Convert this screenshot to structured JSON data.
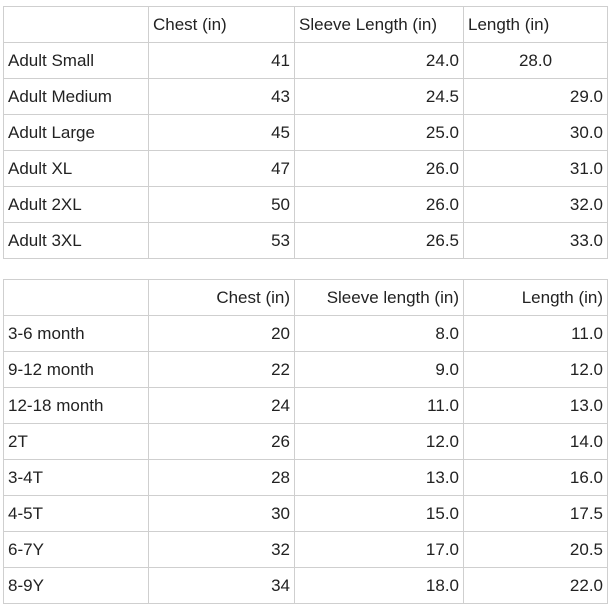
{
  "adult_table": {
    "headers": [
      "",
      "Chest (in)",
      "Sleeve Length (in)",
      "Length (in)"
    ],
    "rows": [
      [
        "Adult Small",
        "41",
        "24.0",
        "28.0"
      ],
      [
        "Adult Medium",
        "43",
        "24.5",
        "29.0"
      ],
      [
        "Adult Large",
        "45",
        "25.0",
        "30.0"
      ],
      [
        "Adult XL",
        "47",
        "26.0",
        "31.0"
      ],
      [
        "Adult 2XL",
        "50",
        "26.0",
        "32.0"
      ],
      [
        "Adult 3XL",
        "53",
        "26.5",
        "33.0"
      ]
    ]
  },
  "kids_table": {
    "headers": [
      "",
      "Chest (in)",
      "Sleeve length (in)",
      "Length (in)"
    ],
    "rows": [
      [
        "3-6 month",
        "20",
        "8.0",
        "11.0"
      ],
      [
        "9-12 month",
        "22",
        "9.0",
        "12.0"
      ],
      [
        "12-18 month",
        "24",
        "11.0",
        "13.0"
      ],
      [
        "2T",
        "26",
        "12.0",
        "14.0"
      ],
      [
        "3-4T",
        "28",
        "13.0",
        "16.0"
      ],
      [
        "4-5T",
        "30",
        "15.0",
        "17.5"
      ],
      [
        "6-7Y",
        "32",
        "17.0",
        "20.5"
      ],
      [
        "8-9Y",
        "34",
        "18.0",
        "22.0"
      ]
    ]
  }
}
